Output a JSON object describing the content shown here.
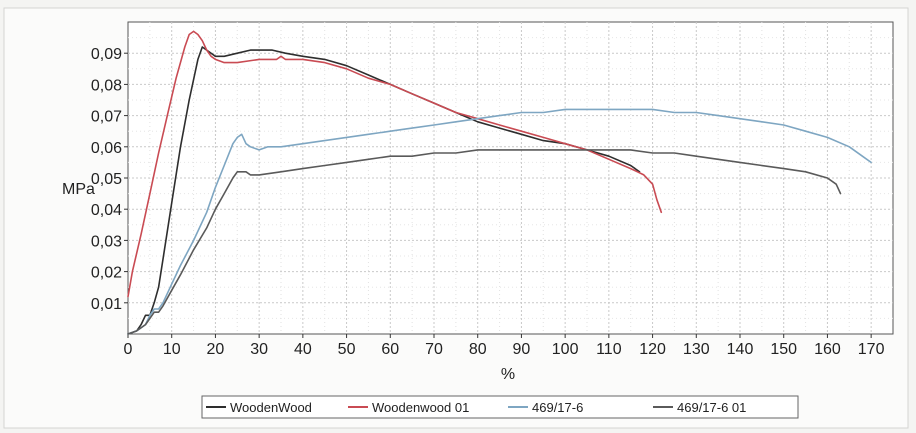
{
  "chart_data": {
    "type": "line",
    "title": "",
    "xlabel": "%",
    "ylabel": "MPa",
    "xlim": [
      0,
      175
    ],
    "ylim": [
      0,
      0.1
    ],
    "x_ticks": [
      0,
      10,
      20,
      30,
      40,
      50,
      60,
      70,
      80,
      90,
      100,
      110,
      120,
      130,
      140,
      150,
      160,
      170
    ],
    "x_tick_labels": [
      "0",
      "10",
      "20",
      "30",
      "40",
      "50",
      "60",
      "70",
      "80",
      "90",
      "100",
      "110",
      "120",
      "130",
      "140",
      "150",
      "160",
      "170"
    ],
    "y_ticks": [
      0.01,
      0.02,
      0.03,
      0.04,
      0.05,
      0.06,
      0.07,
      0.08,
      0.09
    ],
    "y_tick_labels": [
      "0,01",
      "0,02",
      "0,03",
      "0,04",
      "0,05",
      "0,06",
      "0,07",
      "0,08",
      "0,09"
    ],
    "grid": true,
    "legend_position": "bottom",
    "series": [
      {
        "name": "WoodenWood",
        "color": "#2e2e2e",
        "x": [
          0,
          2,
          3,
          4,
          5,
          6,
          7,
          8,
          10,
          12,
          14,
          16,
          17,
          18,
          20,
          22,
          25,
          28,
          30,
          33,
          36,
          40,
          45,
          50,
          55,
          60,
          65,
          70,
          75,
          80,
          85,
          90,
          95,
          100,
          105,
          110,
          115,
          117
        ],
        "y": [
          0,
          0.001,
          0.003,
          0.006,
          0.006,
          0.01,
          0.015,
          0.024,
          0.042,
          0.06,
          0.075,
          0.088,
          0.092,
          0.091,
          0.089,
          0.089,
          0.09,
          0.091,
          0.091,
          0.091,
          0.09,
          0.089,
          0.088,
          0.086,
          0.083,
          0.08,
          0.077,
          0.074,
          0.071,
          0.068,
          0.066,
          0.064,
          0.062,
          0.061,
          0.059,
          0.057,
          0.054,
          0.052
        ]
      },
      {
        "name": "Woodenwood 01",
        "color": "#c94b53",
        "x": [
          0,
          1,
          3,
          5,
          7,
          9,
          11,
          13,
          14,
          15,
          16,
          17,
          18,
          19,
          20,
          22,
          25,
          30,
          34,
          35,
          36,
          40,
          45,
          50,
          55,
          60,
          65,
          70,
          75,
          80,
          85,
          90,
          95,
          100,
          105,
          110,
          115,
          118,
          120,
          121,
          122
        ],
        "y": [
          0.012,
          0.02,
          0.032,
          0.045,
          0.058,
          0.07,
          0.082,
          0.092,
          0.096,
          0.097,
          0.096,
          0.094,
          0.091,
          0.089,
          0.088,
          0.087,
          0.087,
          0.088,
          0.088,
          0.089,
          0.088,
          0.088,
          0.087,
          0.085,
          0.082,
          0.08,
          0.077,
          0.074,
          0.071,
          0.069,
          0.067,
          0.065,
          0.063,
          0.061,
          0.059,
          0.056,
          0.053,
          0.051,
          0.048,
          0.043,
          0.039
        ]
      },
      {
        "name": "469/17-6",
        "color": "#7ea6c2",
        "x": [
          0,
          2,
          4,
          5,
          6,
          7,
          8,
          10,
          12,
          15,
          18,
          20,
          22,
          24,
          25,
          26,
          27,
          28,
          30,
          32,
          35,
          40,
          45,
          50,
          55,
          60,
          65,
          70,
          75,
          80,
          85,
          90,
          95,
          100,
          105,
          110,
          115,
          120,
          125,
          130,
          135,
          140,
          145,
          150,
          155,
          160,
          165,
          168,
          170
        ],
        "y": [
          0,
          0.001,
          0.003,
          0.006,
          0.008,
          0.008,
          0.01,
          0.016,
          0.022,
          0.03,
          0.039,
          0.047,
          0.054,
          0.061,
          0.063,
          0.064,
          0.061,
          0.06,
          0.059,
          0.06,
          0.06,
          0.061,
          0.062,
          0.063,
          0.064,
          0.065,
          0.066,
          0.067,
          0.068,
          0.069,
          0.07,
          0.071,
          0.071,
          0.072,
          0.072,
          0.072,
          0.072,
          0.072,
          0.071,
          0.071,
          0.07,
          0.069,
          0.068,
          0.067,
          0.065,
          0.063,
          0.06,
          0.057,
          0.055
        ]
      },
      {
        "name": "469/17-6 01",
        "color": "#5a5a5a",
        "x": [
          0,
          2,
          4,
          5,
          6,
          7,
          8,
          10,
          12,
          15,
          18,
          20,
          22,
          24,
          25,
          26,
          27,
          28,
          30,
          35,
          40,
          45,
          50,
          55,
          60,
          65,
          70,
          75,
          80,
          85,
          90,
          95,
          100,
          105,
          110,
          115,
          120,
          125,
          130,
          135,
          140,
          145,
          150,
          155,
          160,
          162,
          163
        ],
        "y": [
          0,
          0.001,
          0.003,
          0.005,
          0.007,
          0.007,
          0.009,
          0.014,
          0.019,
          0.027,
          0.034,
          0.04,
          0.045,
          0.05,
          0.052,
          0.052,
          0.052,
          0.051,
          0.051,
          0.052,
          0.053,
          0.054,
          0.055,
          0.056,
          0.057,
          0.057,
          0.058,
          0.058,
          0.059,
          0.059,
          0.059,
          0.059,
          0.059,
          0.059,
          0.059,
          0.059,
          0.058,
          0.058,
          0.057,
          0.056,
          0.055,
          0.054,
          0.053,
          0.052,
          0.05,
          0.048,
          0.045
        ]
      }
    ]
  }
}
